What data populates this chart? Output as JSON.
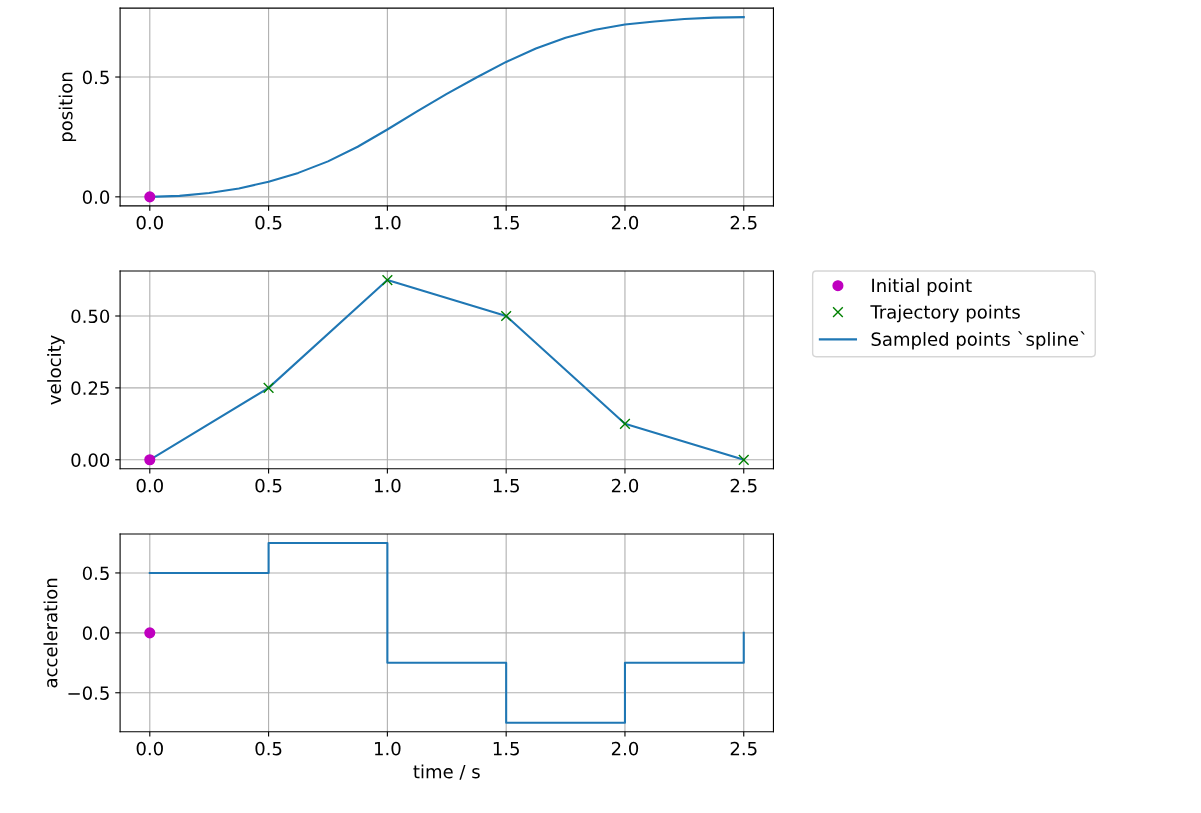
{
  "chart_data": [
    {
      "type": "line",
      "ylabel": "position",
      "xlim": [
        -0.125,
        2.625
      ],
      "ylim": [
        -0.0375,
        0.7875
      ],
      "xticks": [
        {
          "value": 0,
          "label": "0.0"
        },
        {
          "value": 0.5,
          "label": "0.5"
        },
        {
          "value": 1,
          "label": "1.0"
        },
        {
          "value": 1.5,
          "label": "1.5"
        },
        {
          "value": 2,
          "label": "2.0"
        },
        {
          "value": 2.5,
          "label": "2.5"
        }
      ],
      "yticks": [
        {
          "value": 0,
          "label": "0.0"
        },
        {
          "value": 0.5,
          "label": "0.5"
        }
      ],
      "grid": true,
      "legend": false,
      "series": [
        {
          "color": "#1f77b4",
          "x": [
            0,
            0.125,
            0.25,
            0.375,
            0.5,
            0.625,
            0.75,
            0.875,
            1,
            1.125,
            1.25,
            1.375,
            1.5,
            1.625,
            1.75,
            1.875,
            2,
            2.125,
            2.25,
            2.375,
            2.5
          ],
          "values": [
            0,
            0.004,
            0.016,
            0.035,
            0.063,
            0.1,
            0.148,
            0.209,
            0.281,
            0.357,
            0.43,
            0.498,
            0.563,
            0.619,
            0.664,
            0.697,
            0.719,
            0.732,
            0.742,
            0.748,
            0.75
          ]
        },
        {
          "type": "scatter",
          "marker": "circle",
          "color": "#bf00bf",
          "x": [
            0
          ],
          "values": [
            0
          ]
        }
      ]
    },
    {
      "type": "line",
      "ylabel": "velocity",
      "xlim": [
        -0.125,
        2.625
      ],
      "ylim": [
        -0.03125,
        0.65625
      ],
      "xticks": [
        {
          "value": 0,
          "label": "0.0"
        },
        {
          "value": 0.5,
          "label": "0.5"
        },
        {
          "value": 1,
          "label": "1.0"
        },
        {
          "value": 1.5,
          "label": "1.5"
        },
        {
          "value": 2,
          "label": "2.0"
        },
        {
          "value": 2.5,
          "label": "2.5"
        }
      ],
      "yticks": [
        {
          "value": 0,
          "label": "0.00"
        },
        {
          "value": 0.25,
          "label": "0.25"
        },
        {
          "value": 0.5,
          "label": "0.50"
        }
      ],
      "grid": true,
      "legend": "right",
      "series": [
        {
          "type": "scatter",
          "name": "Initial point",
          "marker": "circle",
          "color": "#bf00bf",
          "x": [
            0
          ],
          "values": [
            0
          ]
        },
        {
          "type": "scatter",
          "name": "Trajectory points",
          "marker": "cross",
          "color": "#008000",
          "x": [
            0.5,
            1,
            1.5,
            2,
            2.5
          ],
          "values": [
            0.25,
            0.625,
            0.5,
            0.125,
            0
          ]
        },
        {
          "name": "Sampled points `spline`",
          "color": "#1f77b4",
          "x": [
            0,
            0.5,
            1,
            1.5,
            2,
            2.5
          ],
          "values": [
            0,
            0.25,
            0.625,
            0.5,
            0.125,
            0
          ]
        }
      ]
    },
    {
      "type": "step",
      "ylabel": "acceleration",
      "xlabel": "time / s",
      "xlim": [
        -0.125,
        2.625
      ],
      "ylim": [
        -0.825,
        0.825
      ],
      "xticks": [
        {
          "value": 0,
          "label": "0.0"
        },
        {
          "value": 0.5,
          "label": "0.5"
        },
        {
          "value": 1,
          "label": "1.0"
        },
        {
          "value": 1.5,
          "label": "1.5"
        },
        {
          "value": 2,
          "label": "2.0"
        },
        {
          "value": 2.5,
          "label": "2.5"
        }
      ],
      "yticks": [
        {
          "value": -0.5,
          "label": "−0.5"
        },
        {
          "value": 0,
          "label": "0.0"
        },
        {
          "value": 0.5,
          "label": "0.5"
        }
      ],
      "grid": true,
      "legend": false,
      "series": [
        {
          "color": "#1f77b4",
          "x": [
            0,
            0.5,
            1,
            1.5,
            2,
            2.5
          ],
          "values": [
            0.5,
            0.75,
            -0.25,
            -0.75,
            -0.25,
            0
          ]
        },
        {
          "type": "scatter",
          "marker": "circle",
          "color": "#bf00bf",
          "x": [
            0
          ],
          "values": [
            0
          ]
        }
      ]
    }
  ]
}
